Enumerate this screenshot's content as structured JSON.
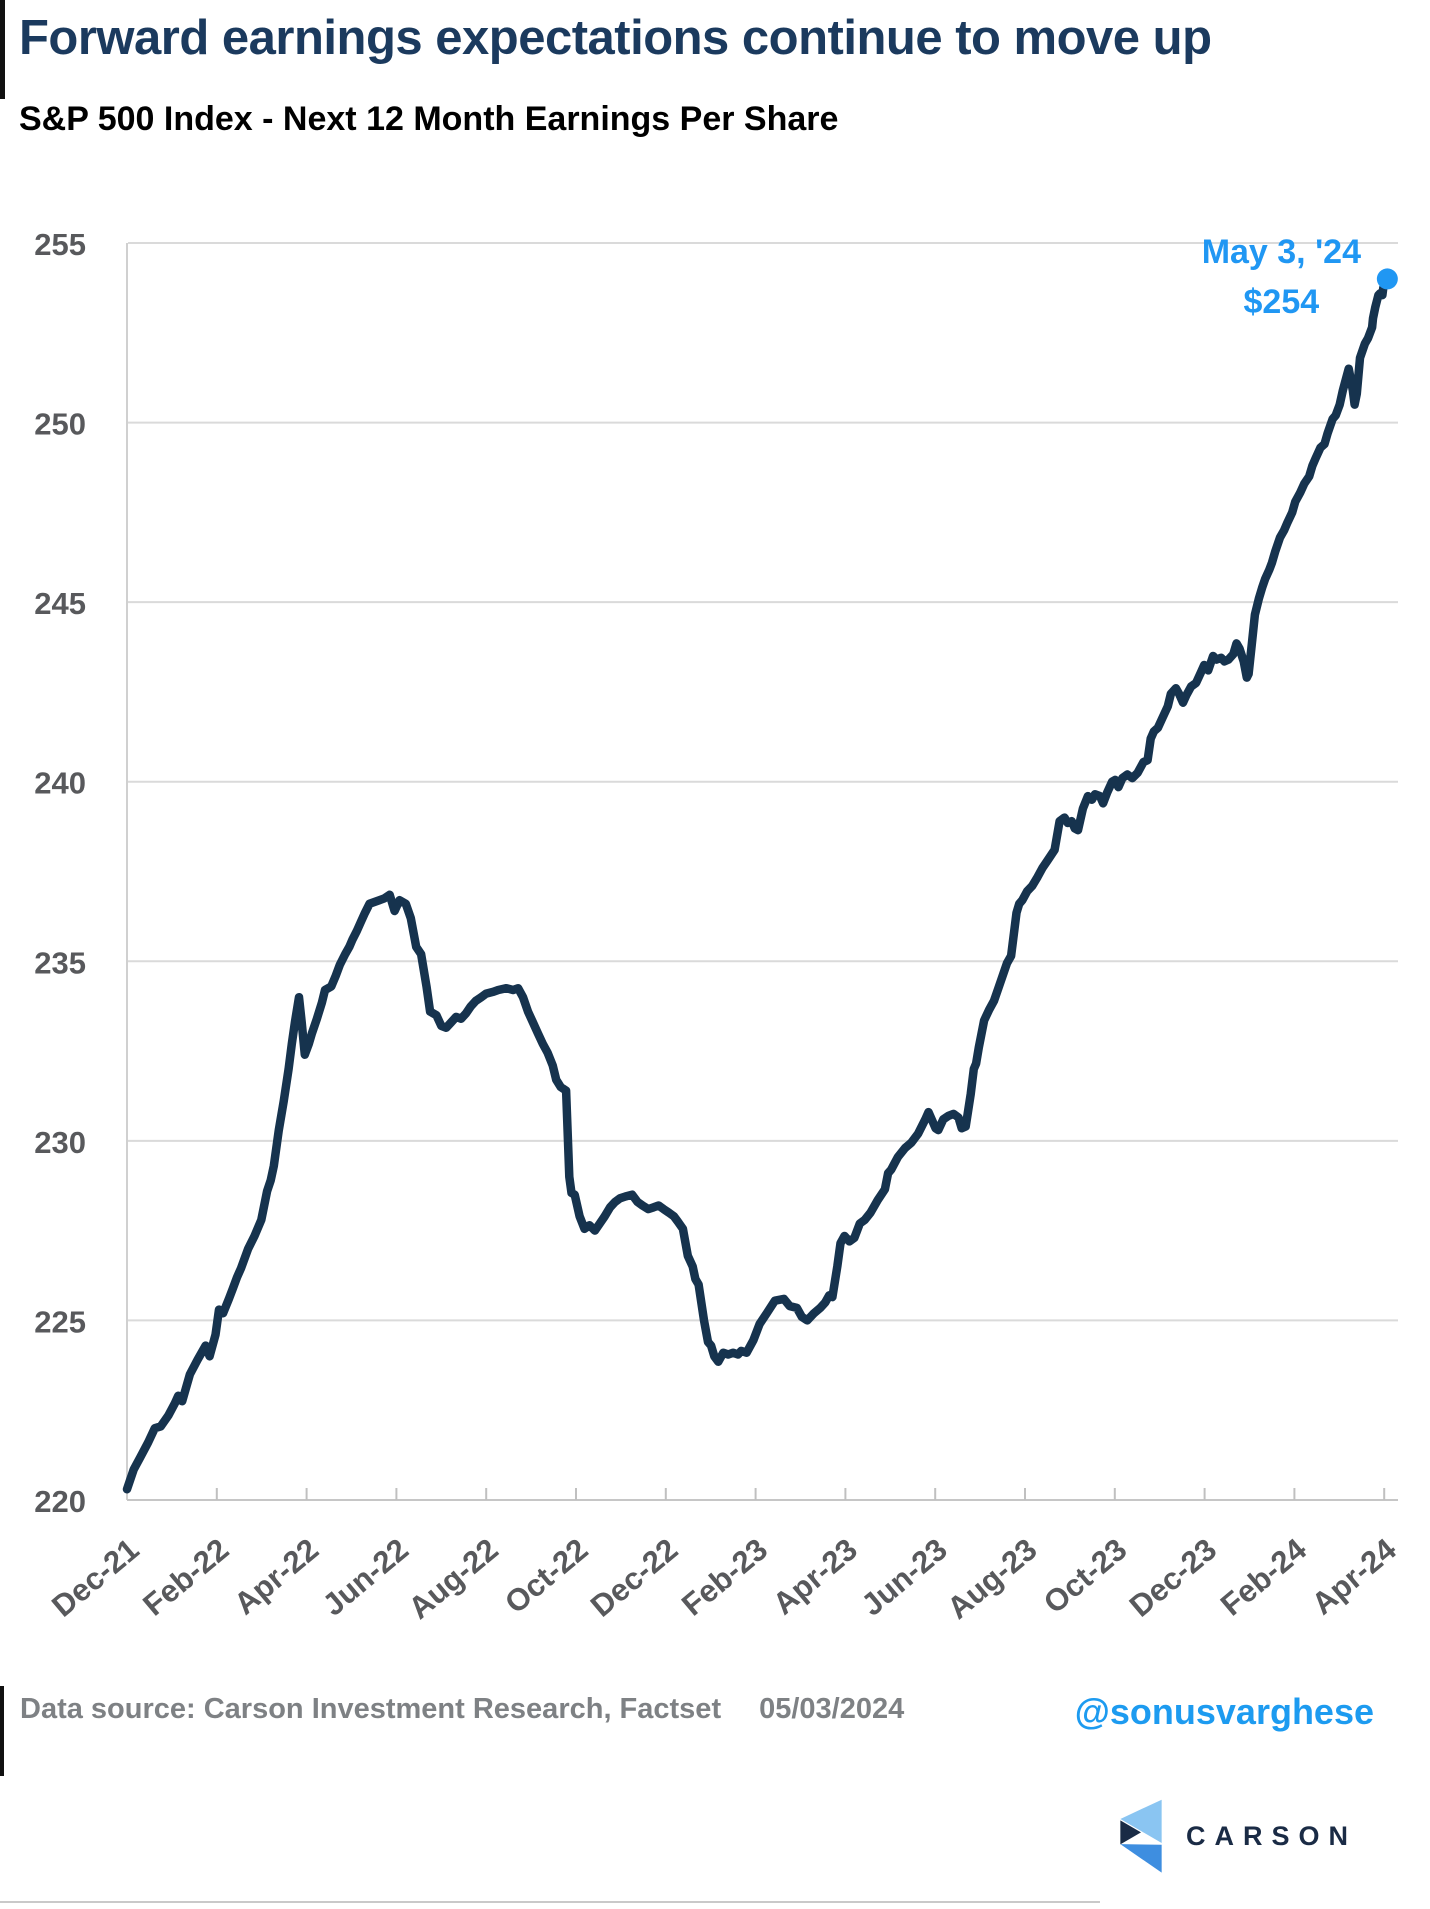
{
  "header": {
    "title": "Forward earnings expectations continue to move up",
    "subtitle": "S&P 500 Index - Next 12 Month Earnings Per Share"
  },
  "chart_data": {
    "type": "line",
    "title": "S&P 500 Index - Next 12 Month Earnings Per Share",
    "xlabel": "",
    "ylabel": "",
    "ylim": [
      220,
      255
    ],
    "grid": "horizontal",
    "x_ticks": [
      "Dec-21",
      "Feb-22",
      "Apr-22",
      "Jun-22",
      "Aug-22",
      "Oct-22",
      "Dec-22",
      "Feb-23",
      "Apr-23",
      "Jun-23",
      "Aug-23",
      "Oct-23",
      "Dec-23",
      "Feb-24",
      "Apr-24"
    ],
    "x_tick_step_months": 2,
    "y_ticks": [
      220,
      225,
      230,
      235,
      240,
      245,
      250,
      255
    ],
    "annotation": {
      "line1": "May 3, '24",
      "line2": "$254",
      "color": "#2097f3"
    },
    "end_point": {
      "date": "May 3, '24",
      "value": 254
    },
    "series": [
      {
        "name": "S&P 500 Next 12 Month EPS",
        "color": "#16334e",
        "points": [
          [
            0,
            220.3
          ],
          [
            0.15,
            220.85
          ],
          [
            0.3,
            221.2
          ],
          [
            0.47,
            221.6
          ],
          [
            0.62,
            222.0
          ],
          [
            0.75,
            222.05
          ],
          [
            0.92,
            222.35
          ],
          [
            1.07,
            222.7
          ],
          [
            1.14,
            222.9
          ],
          [
            1.23,
            222.75
          ],
          [
            1.4,
            223.5
          ],
          [
            1.57,
            223.9
          ],
          [
            1.75,
            224.3
          ],
          [
            1.84,
            224.0
          ],
          [
            1.97,
            224.6
          ],
          [
            2.05,
            225.3
          ],
          [
            2.14,
            225.2
          ],
          [
            2.27,
            225.6
          ],
          [
            2.36,
            225.9
          ],
          [
            2.45,
            226.2
          ],
          [
            2.54,
            226.45
          ],
          [
            2.7,
            227.0
          ],
          [
            2.84,
            227.35
          ],
          [
            2.99,
            227.8
          ],
          [
            3.12,
            228.6
          ],
          [
            3.2,
            228.9
          ],
          [
            3.27,
            229.3
          ],
          [
            3.38,
            230.3
          ],
          [
            3.49,
            231.1
          ],
          [
            3.6,
            232.0
          ],
          [
            3.67,
            232.7
          ],
          [
            3.74,
            233.3
          ],
          [
            3.83,
            234.0
          ],
          [
            3.89,
            233.3
          ],
          [
            3.96,
            232.4
          ],
          [
            4.05,
            232.7
          ],
          [
            4.12,
            233.0
          ],
          [
            4.23,
            233.4
          ],
          [
            4.34,
            233.85
          ],
          [
            4.41,
            234.2
          ],
          [
            4.55,
            234.3
          ],
          [
            4.65,
            234.6
          ],
          [
            4.74,
            234.9
          ],
          [
            4.86,
            235.2
          ],
          [
            4.95,
            235.4
          ],
          [
            5.02,
            235.6
          ],
          [
            5.12,
            235.85
          ],
          [
            5.21,
            236.1
          ],
          [
            5.3,
            236.35
          ],
          [
            5.4,
            236.6
          ],
          [
            5.51,
            236.65
          ],
          [
            5.62,
            236.7
          ],
          [
            5.73,
            236.75
          ],
          [
            5.85,
            236.85
          ],
          [
            5.96,
            236.4
          ],
          [
            6.07,
            236.7
          ],
          [
            6.21,
            236.6
          ],
          [
            6.32,
            236.2
          ],
          [
            6.44,
            235.4
          ],
          [
            6.55,
            235.2
          ],
          [
            6.67,
            234.3
          ],
          [
            6.75,
            233.6
          ],
          [
            6.89,
            233.5
          ],
          [
            7.0,
            233.2
          ],
          [
            7.11,
            233.15
          ],
          [
            7.22,
            233.3
          ],
          [
            7.33,
            233.45
          ],
          [
            7.44,
            233.4
          ],
          [
            7.55,
            233.55
          ],
          [
            7.66,
            233.75
          ],
          [
            7.77,
            233.9
          ],
          [
            7.89,
            234.0
          ],
          [
            8.0,
            234.1
          ],
          [
            8.16,
            234.15
          ],
          [
            8.27,
            234.2
          ],
          [
            8.45,
            234.25
          ],
          [
            8.6,
            234.2
          ],
          [
            8.71,
            234.25
          ],
          [
            8.82,
            234.0
          ],
          [
            8.93,
            233.6
          ],
          [
            9.04,
            233.3
          ],
          [
            9.15,
            233.0
          ],
          [
            9.26,
            232.7
          ],
          [
            9.37,
            232.45
          ],
          [
            9.48,
            232.1
          ],
          [
            9.56,
            231.7
          ],
          [
            9.66,
            231.5
          ],
          [
            9.78,
            231.4
          ],
          [
            9.85,
            229.0
          ],
          [
            9.9,
            228.55
          ],
          [
            9.97,
            228.5
          ],
          [
            10.08,
            227.9
          ],
          [
            10.19,
            227.55
          ],
          [
            10.3,
            227.65
          ],
          [
            10.42,
            227.5
          ],
          [
            10.53,
            227.7
          ],
          [
            10.64,
            227.9
          ],
          [
            10.76,
            228.15
          ],
          [
            10.87,
            228.3
          ],
          [
            10.98,
            228.4
          ],
          [
            11.1,
            228.45
          ],
          [
            11.25,
            228.5
          ],
          [
            11.37,
            228.3
          ],
          [
            11.48,
            228.2
          ],
          [
            11.61,
            228.1
          ],
          [
            11.73,
            228.15
          ],
          [
            11.84,
            228.2
          ],
          [
            11.95,
            228.1
          ],
          [
            12.07,
            228.0
          ],
          [
            12.18,
            227.9
          ],
          [
            12.27,
            227.75
          ],
          [
            12.38,
            227.55
          ],
          [
            12.49,
            226.8
          ],
          [
            12.6,
            226.5
          ],
          [
            12.66,
            226.15
          ],
          [
            12.73,
            226.0
          ],
          [
            12.85,
            225.0
          ],
          [
            12.94,
            224.4
          ],
          [
            13.01,
            224.3
          ],
          [
            13.08,
            224.0
          ],
          [
            13.17,
            223.85
          ],
          [
            13.28,
            224.1
          ],
          [
            13.39,
            224.05
          ],
          [
            13.5,
            224.1
          ],
          [
            13.61,
            224.05
          ],
          [
            13.68,
            224.15
          ],
          [
            13.8,
            224.1
          ],
          [
            13.95,
            224.45
          ],
          [
            14.09,
            224.9
          ],
          [
            14.25,
            225.2
          ],
          [
            14.43,
            225.55
          ],
          [
            14.63,
            225.6
          ],
          [
            14.76,
            225.4
          ],
          [
            14.92,
            225.35
          ],
          [
            15.03,
            225.1
          ],
          [
            15.15,
            225.0
          ],
          [
            15.3,
            225.2
          ],
          [
            15.44,
            225.35
          ],
          [
            15.55,
            225.5
          ],
          [
            15.64,
            225.7
          ],
          [
            15.71,
            225.65
          ],
          [
            15.82,
            226.5
          ],
          [
            15.89,
            227.15
          ],
          [
            15.98,
            227.35
          ],
          [
            16.09,
            227.2
          ],
          [
            16.2,
            227.3
          ],
          [
            16.32,
            227.7
          ],
          [
            16.43,
            227.8
          ],
          [
            16.56,
            228.0
          ],
          [
            16.72,
            228.35
          ],
          [
            16.88,
            228.65
          ],
          [
            16.95,
            229.1
          ],
          [
            17.02,
            229.2
          ],
          [
            17.17,
            229.55
          ],
          [
            17.33,
            229.8
          ],
          [
            17.47,
            229.95
          ],
          [
            17.62,
            230.2
          ],
          [
            17.78,
            230.6
          ],
          [
            17.85,
            230.8
          ],
          [
            18.01,
            230.35
          ],
          [
            18.07,
            230.3
          ],
          [
            18.18,
            230.6
          ],
          [
            18.3,
            230.7
          ],
          [
            18.41,
            230.75
          ],
          [
            18.52,
            230.65
          ],
          [
            18.59,
            230.35
          ],
          [
            18.68,
            230.4
          ],
          [
            18.79,
            231.3
          ],
          [
            18.86,
            232.0
          ],
          [
            18.91,
            232.15
          ],
          [
            18.97,
            232.6
          ],
          [
            19.09,
            233.35
          ],
          [
            19.2,
            233.65
          ],
          [
            19.31,
            233.9
          ],
          [
            19.42,
            234.3
          ],
          [
            19.53,
            234.7
          ],
          [
            19.6,
            234.95
          ],
          [
            19.69,
            235.15
          ],
          [
            19.81,
            236.35
          ],
          [
            19.87,
            236.6
          ],
          [
            19.94,
            236.7
          ],
          [
            20.05,
            236.95
          ],
          [
            20.16,
            237.1
          ],
          [
            20.28,
            237.35
          ],
          [
            20.39,
            237.6
          ],
          [
            20.5,
            237.8
          ],
          [
            20.66,
            238.1
          ],
          [
            20.77,
            238.9
          ],
          [
            20.88,
            239.0
          ],
          [
            20.95,
            238.85
          ],
          [
            21.04,
            238.9
          ],
          [
            21.11,
            238.7
          ],
          [
            21.18,
            238.65
          ],
          [
            21.29,
            239.25
          ],
          [
            21.4,
            239.6
          ],
          [
            21.49,
            239.5
          ],
          [
            21.56,
            239.65
          ],
          [
            21.67,
            239.6
          ],
          [
            21.74,
            239.4
          ],
          [
            21.83,
            239.7
          ],
          [
            21.94,
            240.0
          ],
          [
            22.01,
            240.05
          ],
          [
            22.08,
            239.85
          ],
          [
            22.17,
            240.1
          ],
          [
            22.28,
            240.2
          ],
          [
            22.39,
            240.1
          ],
          [
            22.51,
            240.25
          ],
          [
            22.64,
            240.55
          ],
          [
            22.73,
            240.6
          ],
          [
            22.8,
            241.2
          ],
          [
            22.87,
            241.4
          ],
          [
            22.96,
            241.5
          ],
          [
            23.07,
            241.8
          ],
          [
            23.18,
            242.1
          ],
          [
            23.25,
            242.45
          ],
          [
            23.36,
            242.6
          ],
          [
            23.43,
            242.45
          ],
          [
            23.52,
            242.2
          ],
          [
            23.59,
            242.4
          ],
          [
            23.7,
            242.65
          ],
          [
            23.81,
            242.75
          ],
          [
            23.92,
            243.05
          ],
          [
            23.99,
            243.25
          ],
          [
            24.08,
            243.1
          ],
          [
            24.19,
            243.5
          ],
          [
            24.26,
            243.4
          ],
          [
            24.37,
            243.45
          ],
          [
            24.44,
            243.35
          ],
          [
            24.53,
            243.4
          ],
          [
            24.64,
            243.55
          ],
          [
            24.71,
            243.85
          ],
          [
            24.78,
            243.7
          ],
          [
            24.87,
            243.35
          ],
          [
            24.94,
            242.9
          ],
          [
            24.98,
            243.0
          ],
          [
            25.05,
            243.8
          ],
          [
            25.12,
            244.65
          ],
          [
            25.21,
            245.1
          ],
          [
            25.28,
            245.4
          ],
          [
            25.35,
            245.65
          ],
          [
            25.44,
            245.9
          ],
          [
            25.5,
            246.1
          ],
          [
            25.57,
            246.4
          ],
          [
            25.68,
            246.8
          ],
          [
            25.77,
            247.0
          ],
          [
            25.84,
            247.2
          ],
          [
            25.95,
            247.5
          ],
          [
            26.02,
            247.8
          ],
          [
            26.13,
            248.05
          ],
          [
            26.22,
            248.3
          ],
          [
            26.33,
            248.5
          ],
          [
            26.4,
            248.8
          ],
          [
            26.47,
            249.0
          ],
          [
            26.58,
            249.3
          ],
          [
            26.67,
            249.4
          ],
          [
            26.74,
            249.7
          ],
          [
            26.85,
            250.1
          ],
          [
            26.92,
            250.2
          ],
          [
            27.01,
            250.5
          ],
          [
            27.08,
            250.9
          ],
          [
            27.21,
            251.5
          ],
          [
            27.3,
            250.9
          ],
          [
            27.34,
            250.5
          ],
          [
            27.39,
            250.8
          ],
          [
            27.46,
            251.8
          ],
          [
            27.57,
            252.2
          ],
          [
            27.64,
            252.35
          ],
          [
            27.73,
            252.65
          ],
          [
            27.75,
            252.9
          ],
          [
            27.8,
            253.2
          ],
          [
            27.84,
            253.4
          ],
          [
            27.87,
            253.55
          ],
          [
            27.91,
            253.6
          ],
          [
            27.96,
            253.55
          ],
          [
            27.98,
            253.75
          ],
          [
            28.07,
            254.0
          ]
        ]
      }
    ]
  },
  "footer": {
    "source": "Data source: Carson Investment Research, Factset",
    "date": "05/03/2024",
    "handle": "@sonusvarghese",
    "logo_text": "CARSON"
  },
  "colors": {
    "line": "#16334e",
    "accent_blue": "#2097f3",
    "handle_blue": "#1d9bf0",
    "title_navy": "#1b3a5e",
    "grid": "#dadada",
    "tick_gray": "#58595c",
    "footer_gray": "#7e8184",
    "logo_navy": "#1a2b45",
    "logo_light_blue": "#8ac5f2",
    "logo_mid_blue": "#3e8ee0"
  }
}
